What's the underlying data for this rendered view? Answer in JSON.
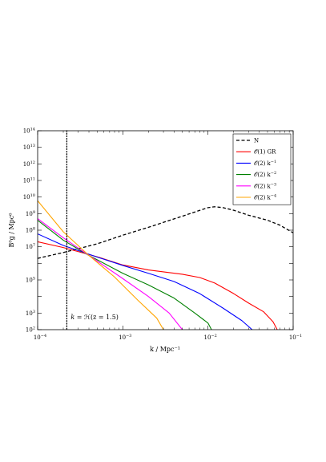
{
  "chart_data": {
    "type": "line",
    "xscale": "log",
    "yscale": "log",
    "xlim": [
      0.0001,
      0.1
    ],
    "ylim": [
      100,
      100000000000000
    ],
    "xlabel": "k / Mpc⁻¹",
    "ylabel": "B⁰g / Mpc⁶",
    "x_ticks": [
      {
        "value": 0.0001,
        "base": "10",
        "exp": "−4"
      },
      {
        "value": 0.001,
        "base": "10",
        "exp": "−3"
      },
      {
        "value": 0.01,
        "base": "10",
        "exp": "−2"
      },
      {
        "value": 0.1,
        "base": "10",
        "exp": "−1"
      }
    ],
    "y_ticks": [
      {
        "value": 100,
        "base": "10",
        "exp": "2"
      },
      {
        "value": 1000,
        "base": "10",
        "exp": "3"
      },
      {
        "value": 100000,
        "base": "10",
        "exp": "5"
      },
      {
        "value": 10000000,
        "base": "10",
        "exp": "7"
      },
      {
        "value": 100000000,
        "base": "10",
        "exp": "8"
      },
      {
        "value": 1000000000,
        "base": "10",
        "exp": "9"
      },
      {
        "value": 10000000000,
        "base": "10",
        "exp": "10"
      },
      {
        "value": 100000000000,
        "base": "10",
        "exp": "11"
      },
      {
        "value": 1000000000000,
        "base": "10",
        "exp": "12"
      },
      {
        "value": 10000000000000,
        "base": "10",
        "exp": "13"
      },
      {
        "value": 100000000000000,
        "base": "10",
        "exp": "14"
      }
    ],
    "grid": false,
    "legend_position": "top-right",
    "vline": {
      "x": 0.00022,
      "style": "dotted",
      "color": "#000000",
      "label_prefix": "k = ",
      "label_main": "ℋ(z = 1.5)"
    },
    "series": [
      {
        "name": "N",
        "name_sup": "",
        "color": "#000000",
        "style": "dashed",
        "points": [
          [
            0.0001,
            2000000
          ],
          [
            0.0002,
            4500000
          ],
          [
            0.0005,
            15000000
          ],
          [
            0.001,
            50000000
          ],
          [
            0.002,
            150000000
          ],
          [
            0.005,
            700000000
          ],
          [
            0.01,
            2300000000
          ],
          [
            0.012,
            2600000000
          ],
          [
            0.015,
            2300000000
          ],
          [
            0.02,
            1600000000
          ],
          [
            0.03,
            800000000
          ],
          [
            0.05,
            400000000
          ],
          [
            0.07,
            200000000
          ],
          [
            0.1,
            70000000
          ]
        ]
      },
      {
        "name": "𝒪(1) GR",
        "name_sup": "",
        "color": "#ff0000",
        "style": "solid",
        "points": [
          [
            0.0001,
            20000000
          ],
          [
            0.0002,
            9000000
          ],
          [
            0.0005,
            2500000
          ],
          [
            0.001,
            800000
          ],
          [
            0.002,
            400000
          ],
          [
            0.005,
            220000
          ],
          [
            0.008,
            140000
          ],
          [
            0.012,
            65000
          ],
          [
            0.02,
            15000
          ],
          [
            0.03,
            4000
          ],
          [
            0.045,
            1200
          ],
          [
            0.058,
            300
          ],
          [
            0.065,
            100
          ]
        ]
      },
      {
        "name": "𝒪(2) k",
        "name_sup": "−1",
        "color": "#0000ff",
        "style": "solid",
        "points": [
          [
            0.0001,
            60000000
          ],
          [
            0.0002,
            12000000
          ],
          [
            0.0005,
            2400000
          ],
          [
            0.001,
            750000
          ],
          [
            0.002,
            250000
          ],
          [
            0.004,
            80000
          ],
          [
            0.008,
            15000
          ],
          [
            0.015,
            2000
          ],
          [
            0.025,
            350
          ],
          [
            0.033,
            100
          ]
        ]
      },
      {
        "name": "𝒪(2) k",
        "name_sup": "−2",
        "color": "#008000",
        "style": "solid",
        "points": [
          [
            0.0001,
            400000000
          ],
          [
            0.0002,
            25000000
          ],
          [
            0.0004,
            3000000
          ],
          [
            0.001,
            250000
          ],
          [
            0.002,
            50000
          ],
          [
            0.004,
            8000
          ],
          [
            0.007,
            1000
          ],
          [
            0.01,
            250
          ],
          [
            0.011,
            100
          ]
        ]
      },
      {
        "name": "𝒪(2) k",
        "name_sup": "−3",
        "color": "#ff00ff",
        "style": "solid",
        "points": [
          [
            0.0001,
            500000000
          ],
          [
            0.0002,
            35000000
          ],
          [
            0.0004,
            3000000
          ],
          [
            0.001,
            120000
          ],
          [
            0.002,
            10000
          ],
          [
            0.0035,
            1000
          ],
          [
            0.005,
            100
          ]
        ]
      },
      {
        "name": "𝒪(2) k",
        "name_sup": "−4",
        "color": "#ffa500",
        "style": "solid",
        "points": [
          [
            0.0001,
            6000000000
          ],
          [
            0.0002,
            80000000
          ],
          [
            0.0004,
            3000000
          ],
          [
            0.0008,
            150000
          ],
          [
            0.0015,
            6000
          ],
          [
            0.0025,
            500
          ],
          [
            0.003,
            100
          ]
        ]
      }
    ]
  }
}
